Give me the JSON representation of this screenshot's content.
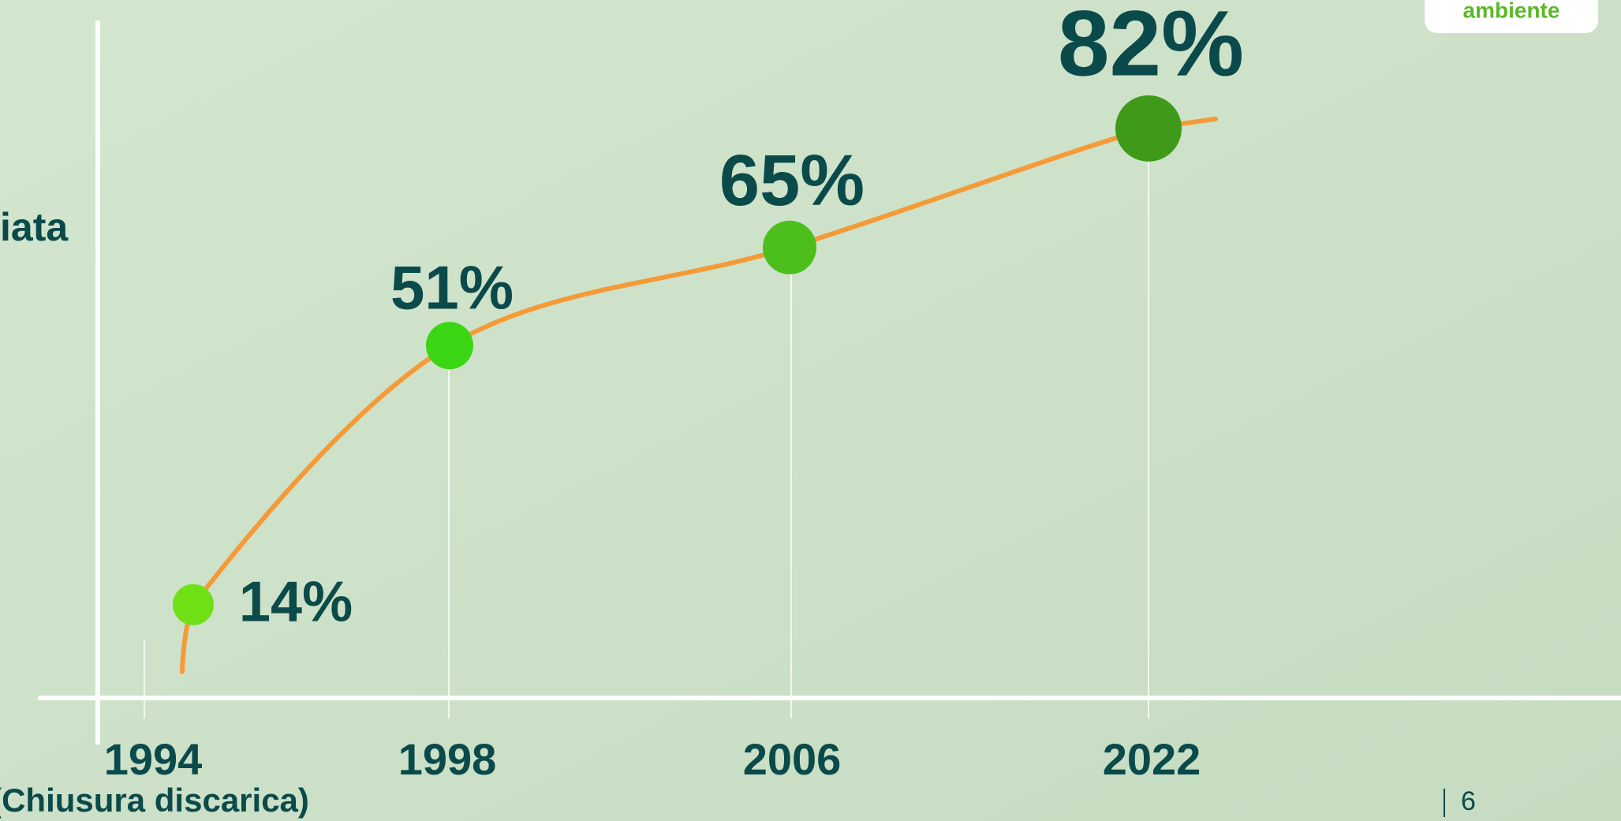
{
  "chart_data": {
    "type": "line",
    "ylabel": "iata",
    "categories": [
      "1994",
      "1998",
      "2006",
      "2022"
    ],
    "x_annotation": "(Chiusura discarica)",
    "values": [
      14,
      51,
      65,
      82
    ],
    "value_labels": [
      "14%",
      "51%",
      "65%",
      "82%"
    ],
    "line_color": "#f59a38",
    "point_colors": [
      "#6ee014",
      "#3ad614",
      "#4cbf1c",
      "#3f9a1a"
    ]
  },
  "logo": "ambiente",
  "page_number": "6"
}
